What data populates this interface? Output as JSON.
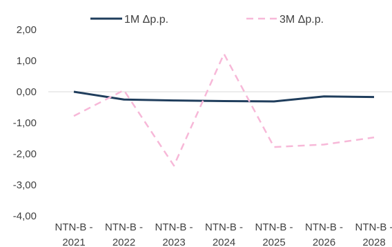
{
  "chart_data": {
    "type": "line",
    "title": "",
    "xlabel": "",
    "ylabel": "",
    "categories": [
      [
        "NTN-B -",
        "2021"
      ],
      [
        "NTN-B -",
        "2022"
      ],
      [
        "NTN-B -",
        "2023"
      ],
      [
        "NTN-B -",
        "2024"
      ],
      [
        "NTN-B -",
        "2025"
      ],
      [
        "NTN-B -",
        "2026"
      ],
      [
        "NTN-B -",
        "2028"
      ]
    ],
    "ylim": [
      -4,
      2
    ],
    "y_ticks": [
      2,
      1,
      0,
      -1,
      -2,
      -3,
      -4
    ],
    "y_tick_labels": [
      "2,00",
      "1,00",
      "0,00",
      "-1,00",
      "-2,00",
      "-3,00",
      "-4,00"
    ],
    "grid": false,
    "legend_position": "top",
    "series": [
      {
        "name": "1M Δp.p.",
        "values": [
          0.0,
          -0.25,
          -0.28,
          -0.3,
          -0.31,
          -0.15,
          -0.17
        ],
        "color": "#1F3D5C",
        "style": "solid"
      },
      {
        "name": "3M Δp.p.",
        "values": [
          -0.78,
          0.05,
          -2.38,
          1.22,
          -1.78,
          -1.7,
          -1.47
        ],
        "color": "#F7B8D8",
        "style": "dashed"
      }
    ]
  }
}
